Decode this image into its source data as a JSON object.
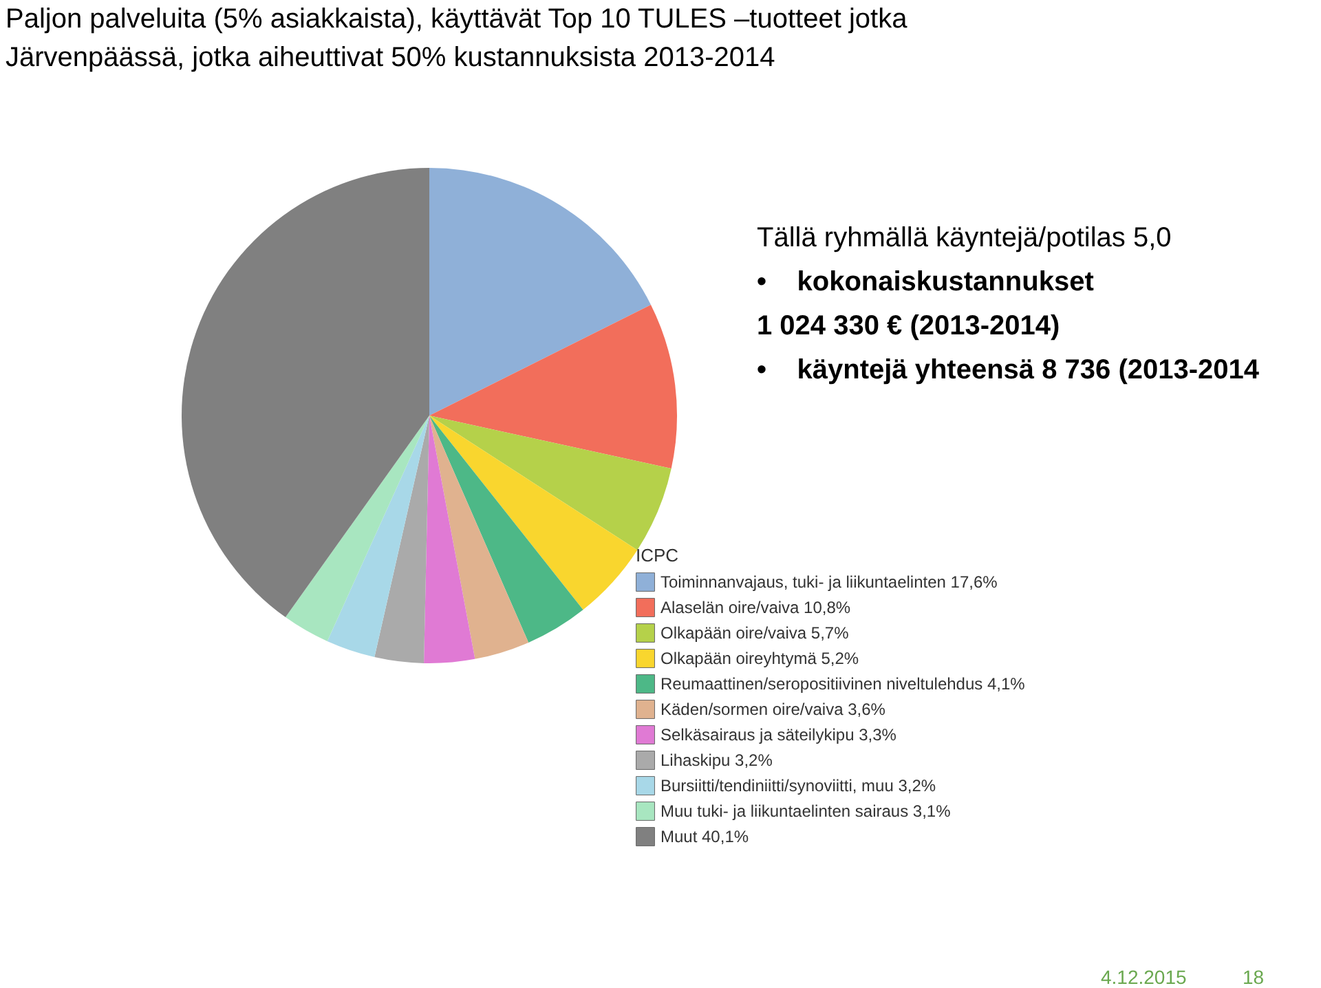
{
  "chart_data": {
    "type": "pie",
    "title": "Paljon palveluita (5% asiakkaista), käyttävät Top 10 TULES –tuotteet jotka Järvenpäässä, jotka aiheuttivat 50% kustannuksista 2013-2014",
    "legend_title": "ICPC",
    "legend": "bottom right",
    "categories": [
      "Toiminnanvajaus, tuki- ja liikuntaelinten",
      "Alaselän oire/vaiva",
      "Olkapään oire/vaiva",
      "Olkapään oireyhtymä",
      "Reumaattinen/seropositiivinen niveltulehdus",
      "Käden/sormen oire/vaiva",
      "Selkäsairaus ja säteilykipu",
      "Lihaskipu",
      "Bursiitti/tendiniitti/synoviitti, muu",
      "Muu tuki- ja liikuntaelinten sairaus",
      "Muut"
    ],
    "values": [
      17.6,
      10.8,
      5.7,
      5.2,
      4.1,
      3.6,
      3.3,
      3.2,
      3.2,
      3.1,
      40.1
    ],
    "value_labels": [
      "17,6%",
      "10,8%",
      "5,7%",
      "5,2%",
      "4,1%",
      "3,6%",
      "3,3%",
      "3,2%",
      "3,2%",
      "3,1%",
      "40,1%"
    ],
    "colors": [
      "#8fb0d8",
      "#f26e5b",
      "#b5d14a",
      "#f9d62e",
      "#4db887",
      "#e0b28f",
      "#e07ad4",
      "#aaaaaa",
      "#a8d8e8",
      "#a8e6c0",
      "#808080"
    ],
    "annotations": [
      "Tällä ryhmällä käyntejä/potilas 5,0",
      "•    kokonaiskustannukset",
      "1 024 330 € (2013-2014)",
      "•    käyntejä yhteensä 8 736 (2013-2014",
      "4.12.2015",
      "18"
    ]
  }
}
